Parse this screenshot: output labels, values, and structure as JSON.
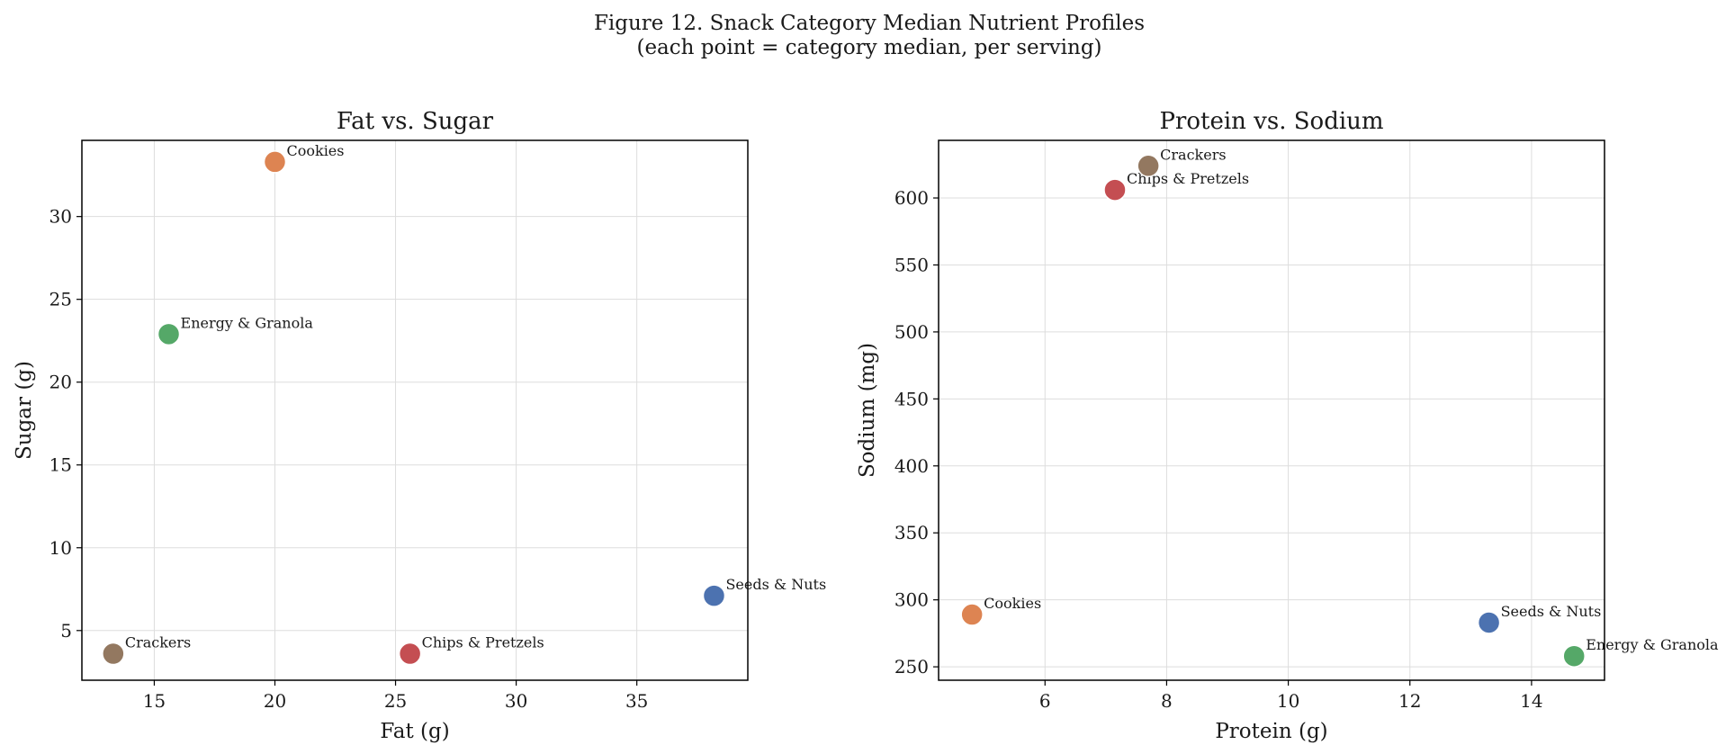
{
  "figure": {
    "suptitle_line1": "Figure 12. Snack Category Median Nutrient Profiles",
    "suptitle_line2": "(each point = category median, per serving)"
  },
  "colors": {
    "Seeds & Nuts": "#4c72b0",
    "Cookies": "#dd8452",
    "Energy & Granola": "#55a868",
    "Chips & Pretzels": "#c44e52",
    "Crackers": "#937860"
  },
  "chart_data": [
    {
      "type": "scatter",
      "title": "Fat vs. Sugar",
      "xlabel": "Fat (g)",
      "ylabel": "Sugar (g)",
      "xlim": [
        12.0,
        39.6
      ],
      "ylim": [
        2.0,
        34.6
      ],
      "xticks": [
        15,
        20,
        25,
        30,
        35
      ],
      "yticks": [
        5,
        10,
        15,
        20,
        25,
        30
      ],
      "grid": true,
      "points": [
        {
          "label": "Seeds & Nuts",
          "x": 38.2,
          "y": 7.1
        },
        {
          "label": "Cookies",
          "x": 20.0,
          "y": 33.3
        },
        {
          "label": "Energy & Granola",
          "x": 15.6,
          "y": 22.9
        },
        {
          "label": "Chips & Pretzels",
          "x": 25.6,
          "y": 3.6
        },
        {
          "label": "Crackers",
          "x": 13.3,
          "y": 3.6
        }
      ]
    },
    {
      "type": "scatter",
      "title": "Protein vs. Sodium",
      "xlabel": "Protein (g)",
      "ylabel": "Sodium (mg)",
      "xlim": [
        4.25,
        15.2
      ],
      "ylim": [
        240,
        643
      ],
      "xticks": [
        6,
        8,
        10,
        12,
        14
      ],
      "yticks": [
        250,
        300,
        350,
        400,
        450,
        500,
        550,
        600
      ],
      "grid": true,
      "points": [
        {
          "label": "Seeds & Nuts",
          "x": 13.3,
          "y": 283
        },
        {
          "label": "Cookies",
          "x": 4.8,
          "y": 289
        },
        {
          "label": "Energy & Granola",
          "x": 14.7,
          "y": 258
        },
        {
          "label": "Chips & Pretzels",
          "x": 7.15,
          "y": 606
        },
        {
          "label": "Crackers",
          "x": 7.7,
          "y": 624
        }
      ]
    }
  ]
}
